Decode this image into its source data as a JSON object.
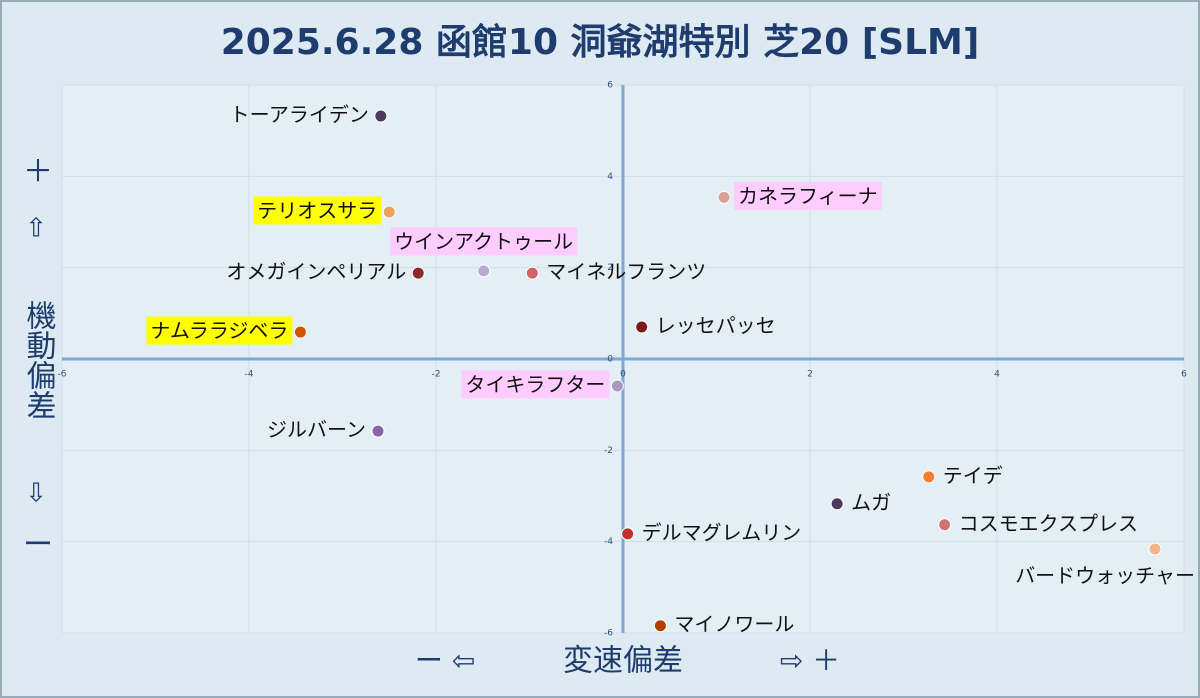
{
  "chart_data": {
    "type": "scatter",
    "title": "2025.6.28 函館10 洞爺湖特別 芝20 [SLM]",
    "xlabel": "変速偏差",
    "ylabel": "機動偏差",
    "x_left_hint": "ー ⇦",
    "x_right_hint": "⇨ ＋",
    "y_top_hint": [
      "＋",
      "⇧"
    ],
    "y_bottom_hint": [
      "⇩",
      "ー"
    ],
    "xlim": [
      -6,
      6
    ],
    "ylim": [
      -6,
      6
    ],
    "xticks": [
      -6,
      -4,
      -2,
      0,
      2,
      4,
      6
    ],
    "yticks": [
      -6,
      -4,
      -2,
      0,
      2,
      4,
      6
    ],
    "grid": true,
    "series": [
      {
        "name": "トーアライデン",
        "color": "#4b3a5e",
        "x": -2.59,
        "y": 5.32
      },
      {
        "name": "テリオスサラ",
        "color": "#eaa356",
        "x": -2.5,
        "y": 3.22
      },
      {
        "name": "カネラフィーナ",
        "color": "#d9a096",
        "x": 1.08,
        "y": 3.54
      },
      {
        "name": "ウインアクトゥール",
        "color": "#b9aad2",
        "x": -1.49,
        "y": 1.93
      },
      {
        "name": "オメガインペリアル",
        "color": "#8b2a2a",
        "x": -2.19,
        "y": 1.88
      },
      {
        "name": "マイネルフランツ",
        "color": "#d06464",
        "x": -0.97,
        "y": 1.88
      },
      {
        "name": "ナムララジベラ",
        "color": "#d35400",
        "x": -3.45,
        "y": 0.59
      },
      {
        "name": "レッセパッセ",
        "color": "#7b1a1a",
        "x": 0.2,
        "y": 0.7
      },
      {
        "name": "タイキラフター",
        "color": "#a898c2",
        "x": -0.06,
        "y": -0.59
      },
      {
        "name": "ジルバーン",
        "color": "#8a62aa",
        "x": -2.62,
        "y": -1.58
      },
      {
        "name": "テイデ",
        "color": "#f08030",
        "x": 3.27,
        "y": -2.58
      },
      {
        "name": "ムガ",
        "color": "#4b3a5e",
        "x": 2.29,
        "y": -3.17
      },
      {
        "name": "コスモエクスプレス",
        "color": "#d07272",
        "x": 3.44,
        "y": -3.63
      },
      {
        "name": "デルマグレムリン",
        "color": "#c03030",
        "x": 0.05,
        "y": -3.83
      },
      {
        "name": "バードウォッチャー",
        "color": "#f2b488",
        "x": 5.69,
        "y": -4.16
      },
      {
        "name": "マイノワール",
        "color": "#b04000",
        "x": 0.4,
        "y": -5.84
      }
    ]
  }
}
